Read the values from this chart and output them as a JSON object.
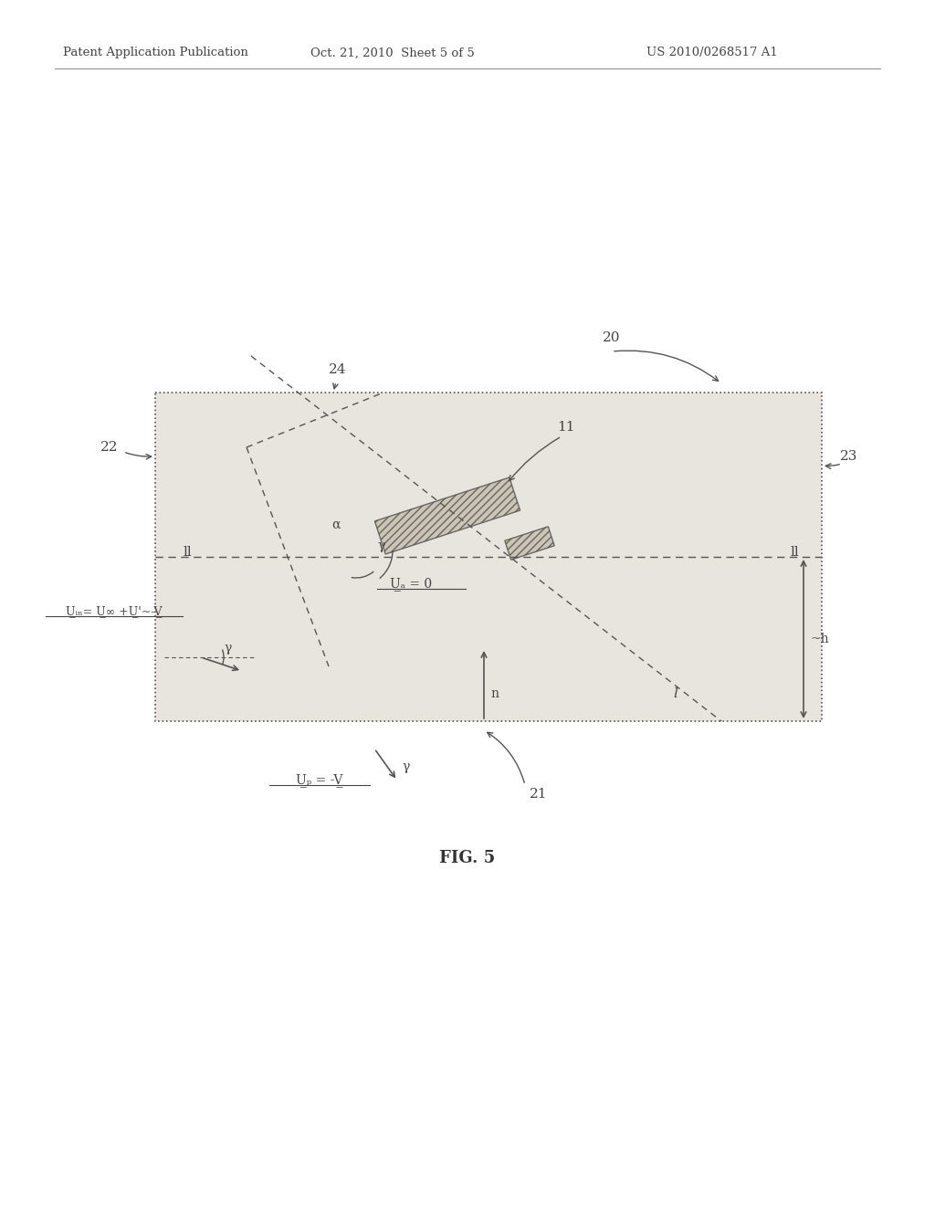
{
  "bg_color": "#f0eeeb",
  "box_color": "#d8d4ce",
  "line_color": "#555555",
  "text_color": "#333333",
  "header_text": "Patent Application Publication",
  "header_date": "Oct. 21, 2010  Sheet 5 of 5",
  "header_patent": "US 2010/0268517 A1",
  "figure_label": "FIG. 5",
  "label_20": "20",
  "label_21": "21",
  "label_22": "22",
  "label_23": "23",
  "label_24": "24",
  "label_11": "11",
  "label_ua": "U̲ₐ = 0",
  "label_uin": "U̲ᵢₙ= U̲∞ +U̲'~-V̲",
  "label_up": "U̲ₚ = -V̲",
  "label_alpha": "α",
  "label_gamma_upper": "γ",
  "label_gamma_lower": "γ",
  "label_h": "~h",
  "label_n": "n",
  "label_ll_left": "ll",
  "label_ll_right": "ll",
  "label_l": "l"
}
